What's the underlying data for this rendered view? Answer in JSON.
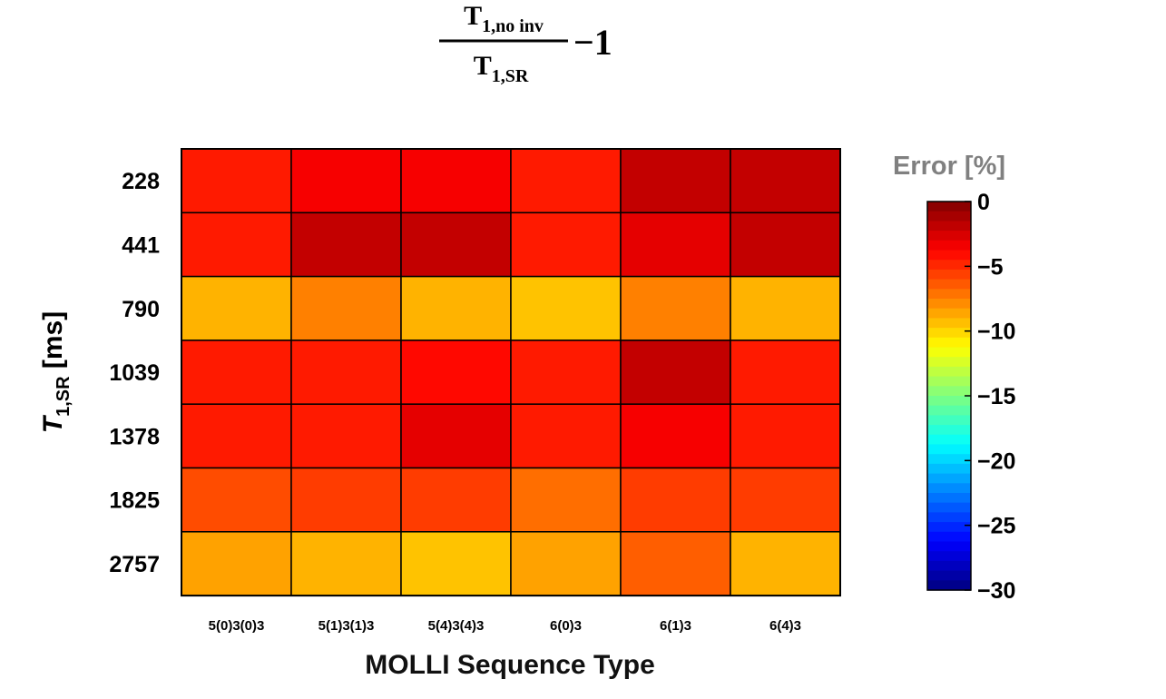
{
  "chart_data": {
    "type": "heatmap",
    "title": {
      "numerator_main": "T",
      "numerator_sub": "1,no inv",
      "denominator_main": "T",
      "denominator_sub": "1,SR",
      "suffix": "−1"
    },
    "xlabel": "MOLLI Sequence Type",
    "ylabel": {
      "main": "T",
      "sub": "1,SR",
      "unit": " [ms]"
    },
    "x_categories": [
      "5(0)3(0)3",
      "5(1)3(1)3",
      "5(4)3(4)3",
      "6(0)3",
      "6(1)3",
      "6(4)3"
    ],
    "y_categories": [
      "228",
      "441",
      "790",
      "1039",
      "1378",
      "1825",
      "2757"
    ],
    "values": [
      [
        -4.5,
        -3.5,
        -3.5,
        -4.5,
        -2.0,
        -2.0
      ],
      [
        -4.5,
        -2.0,
        -2.0,
        -4.5,
        -3.0,
        -2.0
      ],
      [
        -9.0,
        -7.5,
        -9.0,
        -9.5,
        -7.5,
        -9.0
      ],
      [
        -4.5,
        -4.5,
        -4.0,
        -4.5,
        -2.0,
        -4.5
      ],
      [
        -4.5,
        -4.5,
        -3.0,
        -4.5,
        -3.5,
        -4.5
      ],
      [
        -6.0,
        -5.5,
        -5.5,
        -7.0,
        -5.5,
        -5.5
      ],
      [
        -8.5,
        -9.0,
        -9.5,
        -8.5,
        -6.5,
        -9.0
      ]
    ],
    "units": "%",
    "colorbar": {
      "label": "Error [%]",
      "range": [
        -30,
        0
      ],
      "ticks": [
        "0",
        "−5",
        "−10",
        "−15",
        "−20",
        "−25",
        "−30"
      ],
      "tick_values": [
        0,
        -5,
        -10,
        -15,
        -20,
        -25,
        -30
      ],
      "colormap": "jet"
    },
    "grid": true
  }
}
